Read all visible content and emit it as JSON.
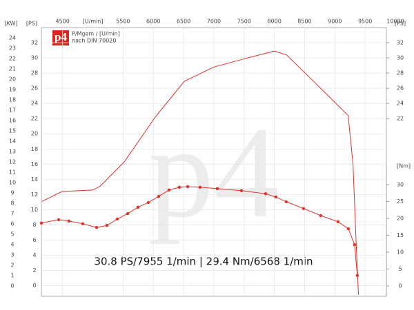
{
  "chart_data": {
    "type": "line",
    "x_label": "[U/min]",
    "y_label": "[PS]",
    "y2_label": "[Nm]",
    "kw_label": "[KW]",
    "legend_lines": [
      "P/Mgem / [U/min]",
      "nach DIN 70020"
    ],
    "logo": "p4",
    "watermark": "p4",
    "annotation": "30.8 PS/7955 1/min | 29.4 Nm/6568 1/min",
    "xlim": [
      4150,
      10000
    ],
    "xticks": [
      4500,
      5500,
      6000,
      6500,
      7000,
      7500,
      8000,
      8500,
      9000,
      9500,
      10000
    ],
    "ylim": [
      -1.4,
      34
    ],
    "yticks": [
      0,
      2,
      4,
      6,
      8,
      10,
      12,
      14,
      16,
      18,
      20,
      22,
      24,
      26,
      28,
      30,
      32
    ],
    "y_right_ticks": [
      22,
      24,
      26,
      28,
      30,
      32
    ],
    "y2lim": [
      -3.06,
      76.5
    ],
    "y2ticks": [
      0,
      5,
      10,
      15,
      20,
      25,
      30
    ],
    "kwlim": [
      -1,
      25
    ],
    "kwticks": [
      0,
      1,
      2,
      3,
      4,
      5,
      6,
      7,
      8,
      9,
      10,
      11,
      12,
      13,
      14,
      15,
      16,
      17,
      18,
      19,
      20,
      21,
      22,
      23,
      24
    ],
    "grid": true,
    "series": [
      {
        "name": "PS",
        "color": "#e0302a",
        "markers": false,
        "x": [
          4160,
          4492,
          5005,
          5120,
          5520,
          6030,
          6510,
          7000,
          7510,
          8000,
          8200,
          8650,
          9220,
          9300,
          9350,
          9390
        ],
        "values": [
          11.1,
          12.4,
          12.6,
          13.1,
          16.3,
          22.2,
          26.9,
          28.8,
          29.9,
          30.9,
          30.4,
          26.9,
          22.4,
          16,
          6,
          -1.2
        ]
      },
      {
        "name": "Nm",
        "color": "#e0302a",
        "markers": true,
        "axis": "y2",
        "x": [
          4150,
          4435,
          4606,
          4834,
          5062,
          5233,
          5404,
          5575,
          5746,
          5917,
          6088,
          6259,
          6430,
          6568,
          6772,
          7057,
          7456,
          7855,
          8026,
          8197,
          8482,
          8767,
          9052,
          9223,
          9326,
          9371
        ],
        "values": [
          18.6,
          19.6,
          19.2,
          18.4,
          17.3,
          17.9,
          19.8,
          21.4,
          23.3,
          24.7,
          26.5,
          28.4,
          29.2,
          29.4,
          29.2,
          28.8,
          28.2,
          27.3,
          26.3,
          24.9,
          22.9,
          20.8,
          19.0,
          16.9,
          12.2,
          3.1
        ]
      }
    ]
  }
}
